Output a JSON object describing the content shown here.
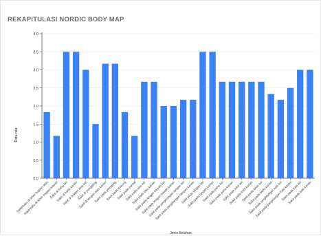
{
  "chart_data": {
    "type": "bar",
    "title": "REKAPITULASI NORDIC BODY MAP",
    "xlabel": "Jenis Keluhan",
    "ylabel": "Rata-rata",
    "ylim": [
      0,
      4.0
    ],
    "yticks": [
      "0.0",
      "0.5",
      "1.0",
      "1.5",
      "2.0",
      "2.5",
      "3.0",
      "3.5",
      "4.0"
    ],
    "grid": true,
    "bar_color": "#3b82f6",
    "categories": [
      "Sakit/kaku di leher bagian atas",
      "Sakit/kaku di leher bagian bawah",
      "Sakit di bahu kiri",
      "Sakit di bahu kanan",
      "Sakit di lengan atas kiri",
      "Sakit di punggung",
      "Sakit di lengan atas kanan",
      "Sakit pada pinggang",
      "Sakit pada bokong",
      "Sakit pada pantat",
      "Sakit pada siku kiri",
      "Sakit pada siku kanan",
      "Sakit pada lengan bawah kiri",
      "Sakit pada lengan bawah kanan",
      "Sakit pada pergelangan tangan kiri",
      "Sakit pada pergelangan tangan kanan",
      "Sakit pada tangan kiri",
      "Sakit pada tangan kanan",
      "Sakit pada paha kiri",
      "Sakit pada paha kanan",
      "Sakit pada lutut kiri",
      "Sakit pada lutut kanan",
      "Sakit pada betis kiri",
      "Sakit pada betis kanan",
      "Sakit pada pergelangan kaki kiri",
      "Sakit pada pergelangan kaki kanan",
      "Sakit pada kaki kiri",
      "Sakit pada kaki kanan"
    ],
    "values": [
      1.83,
      1.17,
      3.5,
      3.5,
      3.0,
      1.5,
      3.17,
      3.17,
      1.83,
      1.17,
      2.67,
      2.67,
      2.0,
      2.0,
      2.17,
      2.17,
      3.5,
      3.5,
      2.67,
      2.67,
      2.67,
      2.67,
      2.67,
      2.33,
      2.17,
      2.5,
      3.0,
      3.0
    ]
  }
}
